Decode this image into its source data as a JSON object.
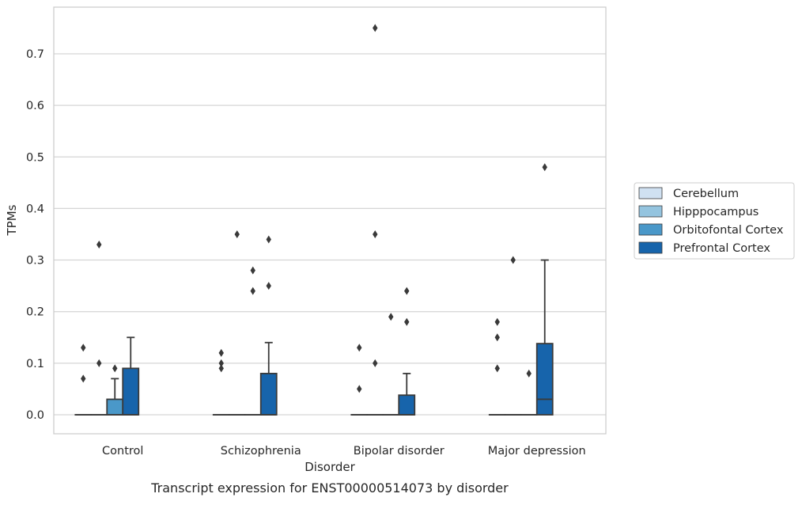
{
  "chart_data": {
    "type": "boxplot",
    "title": "",
    "caption": "Transcript expression for ENST00000514073 by disorder",
    "xlabel": "Disorder",
    "ylabel": "TPMs",
    "ylim": [
      -0.037,
      0.79
    ],
    "yticks": [
      "0.0",
      "0.1",
      "0.2",
      "0.3",
      "0.4",
      "0.5",
      "0.6",
      "0.7"
    ],
    "grid": true,
    "legend_position": "right",
    "categories": [
      "Control",
      "Schizophrenia",
      "Bipolar disorder",
      "Major depression"
    ],
    "series": [
      {
        "name": "Cerebellum",
        "color": "#d0e1f2",
        "boxes": [
          {
            "q1": 0,
            "median": 0,
            "q3": 0,
            "whislo": 0,
            "whishi": 0,
            "fliers": [
              0.13,
              0.07
            ]
          },
          {
            "q1": 0,
            "median": 0,
            "q3": 0,
            "whislo": 0,
            "whishi": 0,
            "fliers": [
              0.12,
              0.1,
              0.09
            ]
          },
          {
            "q1": 0,
            "median": 0,
            "q3": 0,
            "whislo": 0,
            "whishi": 0,
            "fliers": [
              0.13,
              0.05
            ]
          },
          {
            "q1": 0,
            "median": 0,
            "q3": 0,
            "whislo": 0,
            "whishi": 0,
            "fliers": [
              0.18,
              0.15,
              0.09
            ]
          }
        ]
      },
      {
        "name": "Hipppocampus",
        "color": "#94c4df",
        "boxes": [
          {
            "q1": 0,
            "median": 0,
            "q3": 0,
            "whislo": 0,
            "whishi": 0,
            "fliers": [
              0.33,
              0.1
            ]
          },
          {
            "q1": 0,
            "median": 0,
            "q3": 0,
            "whislo": 0,
            "whishi": 0,
            "fliers": [
              0.35
            ]
          },
          {
            "q1": 0,
            "median": 0,
            "q3": 0,
            "whislo": 0,
            "whishi": 0,
            "fliers": [
              0.75,
              0.35,
              0.1
            ]
          },
          {
            "q1": 0,
            "median": 0,
            "q3": 0,
            "whislo": 0,
            "whishi": 0,
            "fliers": [
              0.3
            ]
          }
        ]
      },
      {
        "name": "Orbitofontal Cortex",
        "color": "#4a98c9",
        "boxes": [
          {
            "q1": 0,
            "median": 0,
            "q3": 0.03,
            "whislo": 0,
            "whishi": 0.07,
            "fliers": [
              0.09
            ]
          },
          {
            "q1": 0,
            "median": 0,
            "q3": 0,
            "whislo": 0,
            "whishi": 0,
            "fliers": [
              0.28,
              0.24
            ]
          },
          {
            "q1": 0,
            "median": 0,
            "q3": 0,
            "whislo": 0,
            "whishi": 0,
            "fliers": [
              0.19
            ]
          },
          {
            "q1": 0,
            "median": 0,
            "q3": 0,
            "whislo": 0,
            "whishi": 0,
            "fliers": [
              0.08
            ]
          }
        ]
      },
      {
        "name": "Prefrontal Cortex",
        "color": "#1764ab",
        "boxes": [
          {
            "q1": 0,
            "median": 0,
            "q3": 0.09,
            "whislo": 0,
            "whishi": 0.15,
            "fliers": []
          },
          {
            "q1": 0,
            "median": 0,
            "q3": 0.08,
            "whislo": 0,
            "whishi": 0.14,
            "fliers": [
              0.34,
              0.25
            ]
          },
          {
            "q1": 0,
            "median": 0,
            "q3": 0.038,
            "whislo": 0,
            "whishi": 0.08,
            "fliers": [
              0.24,
              0.18
            ]
          },
          {
            "q1": 0,
            "median": 0.03,
            "q3": 0.138,
            "whislo": 0,
            "whishi": 0.3,
            "fliers": [
              0.48
            ]
          }
        ]
      }
    ]
  }
}
